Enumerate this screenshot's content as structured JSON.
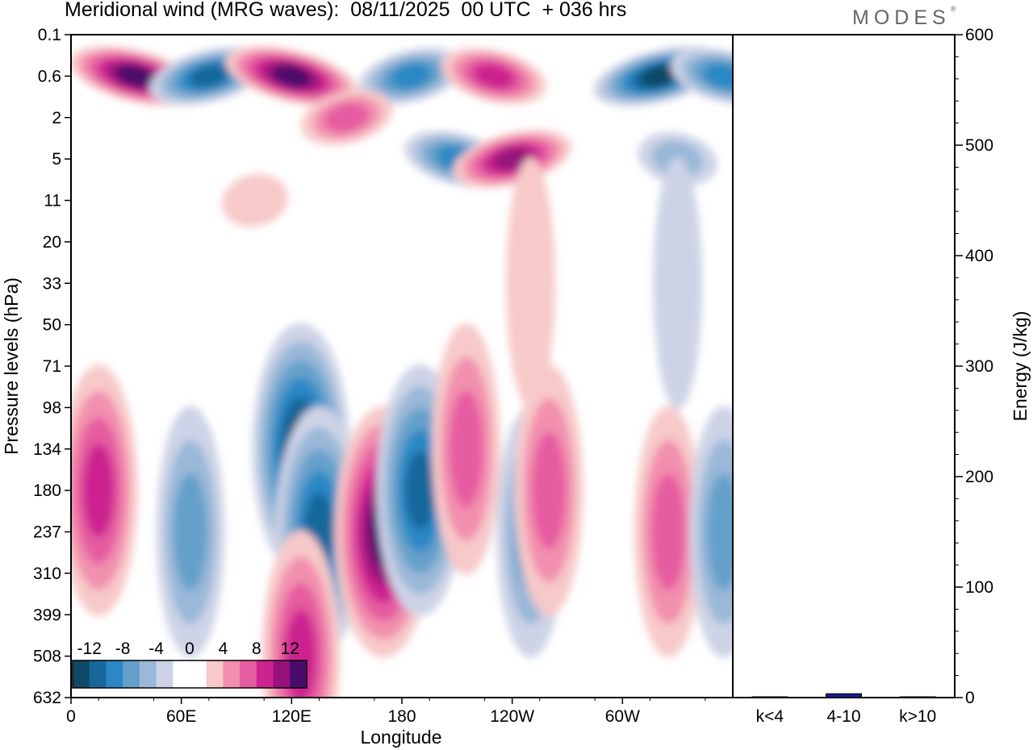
{
  "title": "Meridional wind (MRG waves):  08/11/2025  00 UTC  + 036 hrs",
  "brand": "MODES",
  "brand_mark": "®",
  "colors": {
    "neg": [
      "#0e4a66",
      "#17689b",
      "#2c88c4",
      "#65a0cb",
      "#9ab8d8",
      "#cdd3e6"
    ],
    "pos": [
      "#f7c9c9",
      "#f28fae",
      "#e65ca0",
      "#cc2390",
      "#96127a",
      "#4a0c6b"
    ],
    "bar": "#1a1a8c"
  },
  "chart_data": [
    {
      "type": "heatmap",
      "title": "Meridional wind (MRG waves)",
      "xlabel": "Longitude",
      "ylabel": "Pressure levels (hPa)",
      "x_ticks": [
        "0",
        "60E",
        "120E",
        "180",
        "120W",
        "60W"
      ],
      "y_ticks": [
        "0.1",
        "0.6",
        "2",
        "5",
        "11",
        "20",
        "33",
        "50",
        "71",
        "98",
        "134",
        "180",
        "237",
        "310",
        "399",
        "508",
        "632"
      ],
      "colorbar": {
        "labels": [
          "-12",
          "-8",
          "-4",
          "0",
          "4",
          "8",
          "12"
        ],
        "levels": [
          -14,
          -12,
          -10,
          -8,
          -6,
          -4,
          -2,
          0,
          2,
          4,
          6,
          8,
          10,
          12,
          14
        ]
      },
      "features": [
        {
          "lon": 125,
          "level": 134,
          "sign": -1,
          "mag": 14
        },
        {
          "lon": 135,
          "level": 237,
          "sign": -1,
          "mag": 10
        },
        {
          "lon": 170,
          "level": 237,
          "sign": 1,
          "mag": 14
        },
        {
          "lon": 190,
          "level": 180,
          "sign": -1,
          "mag": 10
        },
        {
          "lon": 15,
          "level": 180,
          "sign": 1,
          "mag": 8
        },
        {
          "lon": 65,
          "level": 237,
          "sign": -1,
          "mag": 6
        },
        {
          "lon": 215,
          "level": 134,
          "sign": 1,
          "mag": 6
        },
        {
          "lon": 250,
          "level": 237,
          "sign": -1,
          "mag": 6
        },
        {
          "lon": 260,
          "level": 180,
          "sign": 1,
          "mag": 6
        },
        {
          "lon": 325,
          "level": 237,
          "sign": 1,
          "mag": 6
        },
        {
          "lon": 355,
          "level": 237,
          "sign": -1,
          "mag": 6
        },
        {
          "lon": 125,
          "level": 508,
          "sign": 1,
          "mag": 8
        },
        {
          "lon": 35,
          "level": 0.6,
          "sign": 1,
          "mag": 12
        },
        {
          "lon": 75,
          "level": 0.6,
          "sign": -1,
          "mag": 10
        },
        {
          "lon": 120,
          "level": 0.6,
          "sign": 1,
          "mag": 12
        },
        {
          "lon": 185,
          "level": 0.6,
          "sign": -1,
          "mag": 8
        },
        {
          "lon": 230,
          "level": 0.6,
          "sign": 1,
          "mag": 8
        },
        {
          "lon": 320,
          "level": 0.6,
          "sign": -1,
          "mag": 14
        },
        {
          "lon": 355,
          "level": 0.6,
          "sign": -1,
          "mag": 8
        },
        {
          "lon": 150,
          "level": 2,
          "sign": 1,
          "mag": 6
        },
        {
          "lon": 210,
          "level": 5,
          "sign": -1,
          "mag": 8
        },
        {
          "lon": 240,
          "level": 5,
          "sign": 1,
          "mag": 10
        },
        {
          "lon": 330,
          "level": 5,
          "sign": -1,
          "mag": 4
        },
        {
          "lon": 100,
          "level": 11,
          "sign": 1,
          "mag": 2
        },
        {
          "lon": 250,
          "level": 33,
          "sign": 1,
          "mag": 2
        },
        {
          "lon": 330,
          "level": 33,
          "sign": -1,
          "mag": 2
        }
      ]
    },
    {
      "type": "bar",
      "categories": [
        "k<4",
        "4-10",
        "k>10"
      ],
      "values": [
        0.5,
        3.5,
        0.3
      ],
      "ylabel": "Energy (J/kg)",
      "ylim": [
        0,
        600
      ],
      "y_ticks": [
        "0",
        "100",
        "200",
        "300",
        "400",
        "500",
        "600"
      ]
    }
  ]
}
